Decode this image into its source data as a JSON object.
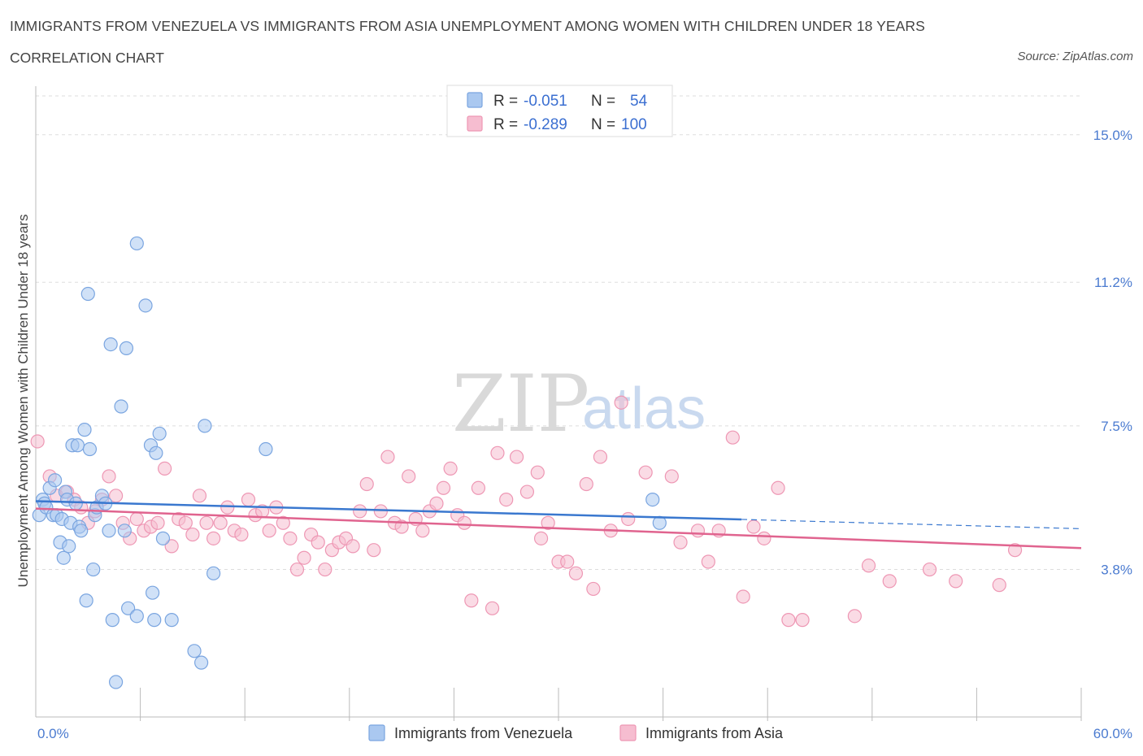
{
  "header": {
    "title": "IMMIGRANTS FROM VENEZUELA VS IMMIGRANTS FROM ASIA UNEMPLOYMENT AMONG WOMEN WITH CHILDREN UNDER 18 YEARS",
    "subtitle": "CORRELATION CHART",
    "source": "Source: ZipAtlas.com"
  },
  "watermark": {
    "part1": "ZIP",
    "part2": "atlas"
  },
  "legend": {
    "rows": [
      {
        "r_label": "R =",
        "r_value": "-0.051",
        "n_label": "N =",
        "n_value": "54"
      },
      {
        "r_label": "R =",
        "r_value": "-0.289",
        "n_label": "N =",
        "n_value": "100"
      }
    ]
  },
  "colors": {
    "venezuela_fill": "#aac8f0",
    "venezuela_stroke": "#7aa5e0",
    "venezuela_line": "#3a78cf",
    "asia_fill": "#f6bdd0",
    "asia_stroke": "#ee97b4",
    "asia_line": "#e0648f",
    "tick_text": "#4b7bd0",
    "grid": "#dddddd"
  },
  "chart_data": {
    "type": "scatter",
    "xlabel": "",
    "ylabel": "Unemployment Among Women with Children Under 18 years",
    "xlim": [
      0,
      60
    ],
    "ylim": [
      0,
      16
    ],
    "x_tick_labels": [
      "0.0%",
      "60.0%"
    ],
    "y_ticks": [
      3.8,
      7.5,
      11.2,
      15.0
    ],
    "y_tick_labels": [
      "3.8%",
      "7.5%",
      "11.2%",
      "15.0%"
    ],
    "grid": true,
    "legend_position": "top-center",
    "series": [
      {
        "name": "Immigrants from Venezuela",
        "trend": {
          "x": [
            0,
            40.5
          ],
          "y": [
            5.56,
            5.09
          ],
          "dashed_to": [
            60,
            4.85
          ]
        },
        "points": [
          [
            0.2,
            5.2
          ],
          [
            0.4,
            5.6
          ],
          [
            0.5,
            5.5
          ],
          [
            0.6,
            5.4
          ],
          [
            0.8,
            5.9
          ],
          [
            1.0,
            5.2
          ],
          [
            1.1,
            6.1
          ],
          [
            1.2,
            5.2
          ],
          [
            1.4,
            4.5
          ],
          [
            1.5,
            5.1
          ],
          [
            1.6,
            4.1
          ],
          [
            1.7,
            5.8
          ],
          [
            1.8,
            5.6
          ],
          [
            1.9,
            4.4
          ],
          [
            2.0,
            5.0
          ],
          [
            2.1,
            7.0
          ],
          [
            2.3,
            5.5
          ],
          [
            2.4,
            7.0
          ],
          [
            2.5,
            4.9
          ],
          [
            2.6,
            4.8
          ],
          [
            2.8,
            7.4
          ],
          [
            2.9,
            3.0
          ],
          [
            3.0,
            10.9
          ],
          [
            3.1,
            6.9
          ],
          [
            3.3,
            3.8
          ],
          [
            3.4,
            5.2
          ],
          [
            3.5,
            5.4
          ],
          [
            3.8,
            5.7
          ],
          [
            4.0,
            5.5
          ],
          [
            4.2,
            4.8
          ],
          [
            4.3,
            9.6
          ],
          [
            4.4,
            2.5
          ],
          [
            4.6,
            0.9
          ],
          [
            4.9,
            8.0
          ],
          [
            5.1,
            4.8
          ],
          [
            5.2,
            9.5
          ],
          [
            5.3,
            2.8
          ],
          [
            5.8,
            12.2
          ],
          [
            5.8,
            2.6
          ],
          [
            6.3,
            10.6
          ],
          [
            6.6,
            7.0
          ],
          [
            6.7,
            3.2
          ],
          [
            6.8,
            2.5
          ],
          [
            6.9,
            6.8
          ],
          [
            7.1,
            7.3
          ],
          [
            7.3,
            4.6
          ],
          [
            7.8,
            2.5
          ],
          [
            9.1,
            1.7
          ],
          [
            9.5,
            1.4
          ],
          [
            9.7,
            7.5
          ],
          [
            10.2,
            3.7
          ],
          [
            13.2,
            6.9
          ],
          [
            35.4,
            5.6
          ],
          [
            35.8,
            5.0
          ]
        ]
      },
      {
        "name": "Immigrants from Asia",
        "trend": {
          "x": [
            0,
            60
          ],
          "y": [
            5.37,
            4.35
          ]
        },
        "points": [
          [
            0.1,
            7.1
          ],
          [
            0.8,
            6.2
          ],
          [
            1.2,
            5.7
          ],
          [
            1.8,
            5.8
          ],
          [
            2.2,
            5.6
          ],
          [
            2.6,
            5.4
          ],
          [
            3.0,
            5.0
          ],
          [
            3.4,
            5.3
          ],
          [
            3.8,
            5.6
          ],
          [
            4.2,
            6.2
          ],
          [
            4.6,
            5.7
          ],
          [
            5.0,
            5.0
          ],
          [
            5.4,
            4.6
          ],
          [
            5.8,
            5.1
          ],
          [
            6.2,
            4.8
          ],
          [
            6.6,
            4.9
          ],
          [
            7.0,
            5.0
          ],
          [
            7.4,
            6.4
          ],
          [
            7.8,
            4.4
          ],
          [
            8.2,
            5.1
          ],
          [
            8.6,
            5.0
          ],
          [
            9.0,
            4.7
          ],
          [
            9.4,
            5.7
          ],
          [
            9.8,
            5.0
          ],
          [
            10.2,
            4.6
          ],
          [
            10.6,
            5.0
          ],
          [
            11.0,
            5.4
          ],
          [
            11.4,
            4.8
          ],
          [
            11.8,
            4.7
          ],
          [
            12.2,
            5.6
          ],
          [
            12.6,
            5.2
          ],
          [
            13.0,
            5.3
          ],
          [
            13.4,
            4.8
          ],
          [
            13.8,
            5.4
          ],
          [
            14.2,
            5.0
          ],
          [
            14.6,
            4.6
          ],
          [
            15.0,
            3.8
          ],
          [
            15.4,
            4.1
          ],
          [
            15.8,
            4.7
          ],
          [
            16.2,
            4.5
          ],
          [
            16.6,
            3.8
          ],
          [
            17.0,
            4.3
          ],
          [
            17.4,
            4.5
          ],
          [
            17.8,
            4.6
          ],
          [
            18.2,
            4.4
          ],
          [
            18.6,
            5.3
          ],
          [
            19.0,
            6.0
          ],
          [
            19.4,
            4.3
          ],
          [
            19.8,
            5.3
          ],
          [
            20.2,
            6.7
          ],
          [
            20.6,
            5.0
          ],
          [
            21.0,
            4.9
          ],
          [
            21.4,
            6.2
          ],
          [
            21.8,
            5.1
          ],
          [
            22.2,
            4.8
          ],
          [
            22.6,
            5.3
          ],
          [
            23.0,
            5.5
          ],
          [
            23.4,
            5.9
          ],
          [
            23.8,
            6.4
          ],
          [
            24.2,
            5.2
          ],
          [
            24.6,
            5.0
          ],
          [
            25.0,
            3.0
          ],
          [
            25.4,
            5.9
          ],
          [
            26.2,
            2.8
          ],
          [
            26.5,
            6.8
          ],
          [
            27.0,
            5.6
          ],
          [
            27.6,
            6.7
          ],
          [
            28.2,
            5.8
          ],
          [
            28.8,
            6.3
          ],
          [
            29.0,
            4.6
          ],
          [
            29.4,
            5.0
          ],
          [
            30.0,
            4.0
          ],
          [
            30.5,
            4.0
          ],
          [
            31.0,
            3.7
          ],
          [
            31.6,
            6.0
          ],
          [
            32.0,
            3.3
          ],
          [
            32.4,
            6.7
          ],
          [
            33.0,
            4.8
          ],
          [
            33.6,
            8.1
          ],
          [
            34.0,
            5.1
          ],
          [
            35.0,
            6.3
          ],
          [
            36.5,
            6.2
          ],
          [
            37.0,
            4.5
          ],
          [
            38.0,
            4.8
          ],
          [
            38.6,
            4.0
          ],
          [
            39.2,
            4.8
          ],
          [
            40.0,
            7.2
          ],
          [
            40.6,
            3.1
          ],
          [
            41.2,
            4.9
          ],
          [
            41.8,
            4.6
          ],
          [
            42.6,
            5.9
          ],
          [
            43.2,
            2.5
          ],
          [
            44.0,
            2.5
          ],
          [
            47.0,
            2.6
          ],
          [
            47.8,
            3.9
          ],
          [
            49.0,
            3.5
          ],
          [
            51.3,
            3.8
          ],
          [
            52.8,
            3.5
          ],
          [
            55.3,
            3.4
          ],
          [
            56.2,
            4.3
          ]
        ]
      }
    ]
  },
  "bottom_legend": {
    "venezuela": "Immigrants from Venezuela",
    "asia": "Immigrants from Asia"
  }
}
